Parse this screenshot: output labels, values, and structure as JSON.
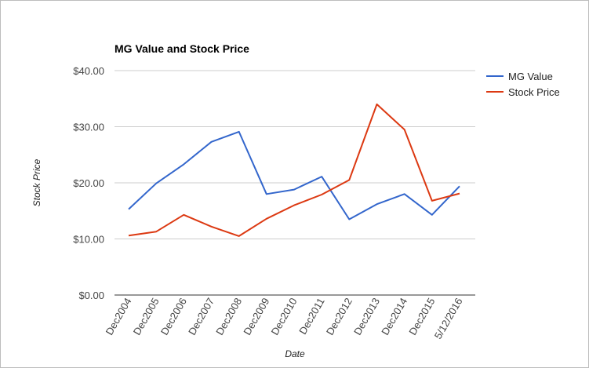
{
  "chart_data": {
    "type": "line",
    "title": "MG Value and Stock Price",
    "xlabel": "Date",
    "ylabel": "Stock Price",
    "categories": [
      "Dec2004",
      "Dec2005",
      "Dec2006",
      "Dec2007",
      "Dec2008",
      "Dec2009",
      "Dec2010",
      "Dec2011",
      "Dec2012",
      "Dec2013",
      "Dec2014",
      "Dec2015",
      "5/12/2016"
    ],
    "series": [
      {
        "name": "MG Value",
        "color": "#3366cc",
        "values": [
          15.3,
          19.9,
          23.3,
          27.3,
          29.1,
          18.0,
          18.8,
          21.1,
          13.5,
          16.2,
          18.0,
          14.3,
          19.4
        ]
      },
      {
        "name": "Stock Price",
        "color": "#dc3912",
        "values": [
          10.6,
          11.3,
          14.3,
          12.2,
          10.5,
          13.6,
          16.0,
          17.9,
          20.5,
          34.0,
          29.5,
          16.8,
          18.1
        ]
      }
    ],
    "ylim": [
      0,
      40
    ],
    "yticks": [
      0,
      10,
      20,
      30,
      40
    ],
    "ytick_labels": [
      "$0.00",
      "$10.00",
      "$20.00",
      "$30.00",
      "$40.00"
    ],
    "grid": true,
    "legend_position": "right"
  }
}
